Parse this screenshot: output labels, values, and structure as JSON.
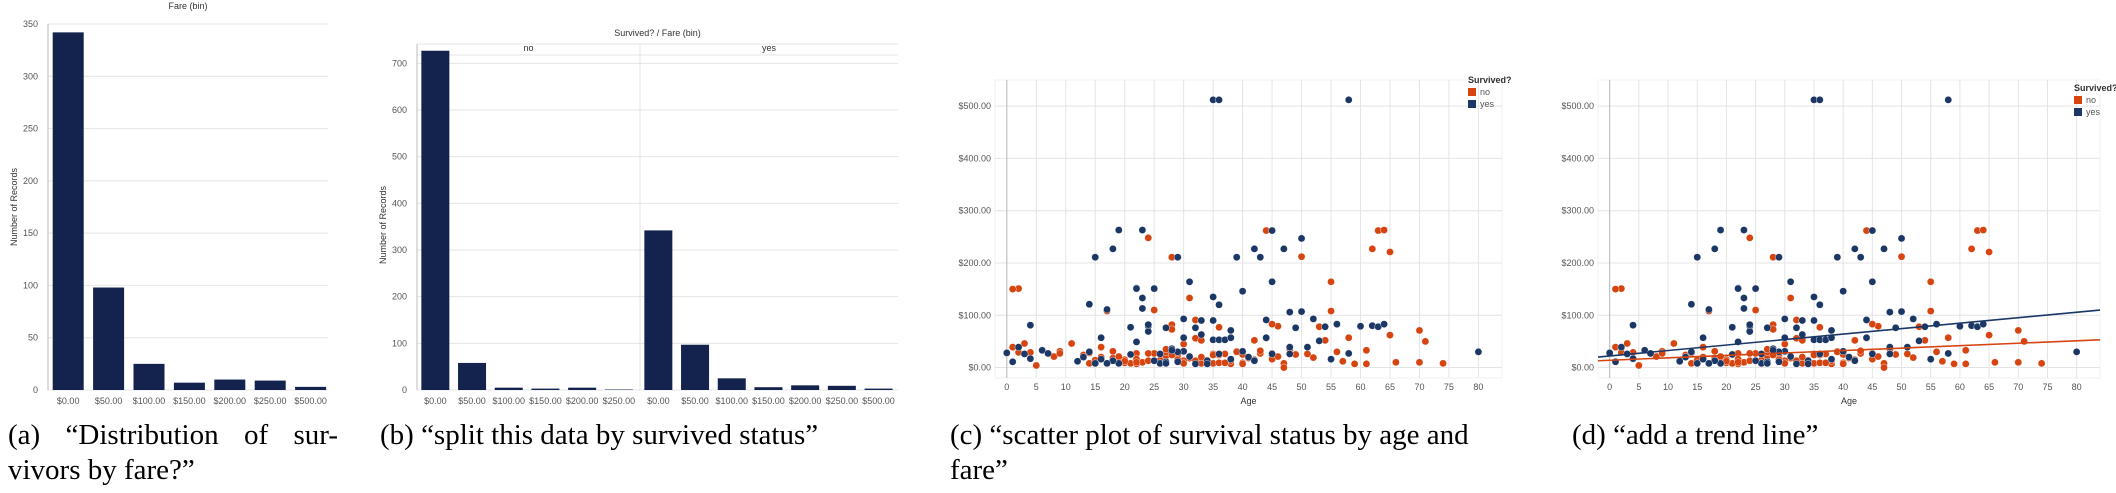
{
  "colors": {
    "bar": "#13234e",
    "no": "#d64510",
    "yes": "#1b3766",
    "grid": "#e4e4e4",
    "axis": "#bbbbbb"
  },
  "captions": {
    "a": "(a) “Distribution of sur- vivors by fare?”",
    "b": "(b) “split this data by survived status”",
    "c": "(c) “scatter plot of survival status by age and fare”",
    "d": "(d) “add a trend line”"
  },
  "chart_data": [
    {
      "id": "a",
      "type": "bar",
      "title": "Fare (bin)",
      "ylabel": "Number of Records",
      "ylim": [
        0,
        350
      ],
      "yticks": [
        0,
        50,
        100,
        150,
        200,
        250,
        300,
        350
      ],
      "categories": [
        "$0.00",
        "$50.00",
        "$100.00",
        "$150.00",
        "$200.00",
        "$250.00",
        "$500.00"
      ],
      "values": [
        342,
        98,
        25,
        7,
        10,
        9,
        3
      ],
      "grid": true
    },
    {
      "id": "b",
      "type": "bar",
      "title": "Survived? / Fare (bin)",
      "ylabel": "Number of Records",
      "ylim": [
        0,
        750
      ],
      "yticks": [
        0,
        100,
        200,
        300,
        400,
        500,
        600,
        700
      ],
      "panels": [
        {
          "name": "no",
          "categories": [
            "$0.00",
            "$50.00",
            "$100.00",
            "$150.00",
            "$200.00",
            "$250.00"
          ],
          "values": [
            727,
            58,
            5,
            3,
            5,
            1
          ]
        },
        {
          "name": "yes",
          "categories": [
            "$0.00",
            "$50.00",
            "$100.00",
            "$150.00",
            "$200.00",
            "$250.00",
            "$500.00"
          ],
          "values": [
            342,
            97,
            25,
            6,
            10,
            9,
            3
          ]
        }
      ],
      "grid": true
    },
    {
      "id": "c",
      "type": "scatter",
      "xlabel": "Age",
      "legend_title": "Survived?",
      "legend_position": "top-right",
      "xlim": [
        -2,
        84
      ],
      "ylim": [
        -20,
        550
      ],
      "xticks": [
        0,
        5,
        10,
        15,
        20,
        25,
        30,
        35,
        40,
        45,
        50,
        55,
        60,
        65,
        70,
        75,
        80
      ],
      "yticks": [
        0,
        100,
        200,
        300,
        400,
        500
      ],
      "ytick_labels": [
        "$0.00",
        "$100.00",
        "$200.00",
        "$300.00",
        "$400.00",
        "$500.00"
      ],
      "series": [
        {
          "name": "no",
          "points": [
            [
              2,
              151
            ],
            [
              1,
              150
            ],
            [
              3,
              46
            ],
            [
              22,
              7
            ],
            [
              35,
              8
            ],
            [
              54,
              52
            ],
            [
              20,
              9
            ],
            [
              39,
              31
            ],
            [
              14,
              8
            ],
            [
              2,
              29
            ],
            [
              31,
              18
            ],
            [
              35,
              26
            ],
            [
              19,
              263
            ],
            [
              40,
              28
            ],
            [
              66,
              10
            ],
            [
              28,
              82
            ],
            [
              42,
              52
            ],
            [
              21,
              8
            ],
            [
              18,
              18
            ],
            [
              40,
              9
            ],
            [
              27,
              22
            ],
            [
              38,
              7
            ],
            [
              44,
              262
            ],
            [
              61,
              33
            ],
            [
              45,
              27
            ],
            [
              28,
              211
            ],
            [
              31,
              133
            ],
            [
              58,
              57
            ],
            [
              37,
              26
            ],
            [
              65,
              62
            ],
            [
              9,
              31
            ],
            [
              28,
              73
            ],
            [
              32,
              56
            ],
            [
              27,
              30
            ],
            [
              36,
              77
            ],
            [
              62,
              227
            ],
            [
              22,
              27
            ],
            [
              17,
              108
            ],
            [
              30,
              13
            ],
            [
              46,
              79
            ],
            [
              47,
              8
            ],
            [
              24,
              248
            ],
            [
              25,
              27
            ],
            [
              29,
              21
            ],
            [
              50,
              212
            ],
            [
              40,
              25
            ],
            [
              56,
              30
            ],
            [
              18,
              31
            ],
            [
              19,
              13
            ],
            [
              24,
              27
            ],
            [
              45,
              16
            ],
            [
              33,
              52
            ],
            [
              22,
              16
            ],
            [
              36,
              9
            ],
            [
              32,
              13
            ],
            [
              20,
              15
            ],
            [
              1,
              39
            ],
            [
              52,
              19
            ],
            [
              21,
              8
            ],
            [
              26,
              14
            ],
            [
              32,
              91
            ],
            [
              36,
              24
            ],
            [
              55,
              108
            ],
            [
              8,
              21
            ],
            [
              29,
              26
            ],
            [
              4,
              29
            ],
            [
              35,
              24
            ],
            [
              55,
              164
            ],
            [
              23,
              10
            ],
            [
              42,
              15
            ],
            [
              63,
              262
            ],
            [
              39,
              30
            ],
            [
              30,
              8
            ],
            [
              48,
              35
            ],
            [
              24,
              13
            ],
            [
              47,
              0
            ],
            [
              71,
              50
            ],
            [
              64,
              263
            ],
            [
              30,
              8
            ],
            [
              70,
              10
            ],
            [
              26,
              7
            ],
            [
              28,
              24
            ],
            [
              53,
              78
            ],
            [
              16,
              20
            ],
            [
              26,
              8
            ],
            [
              20,
              12
            ],
            [
              40,
              7
            ],
            [
              43,
              27
            ],
            [
              25,
              110
            ],
            [
              70,
              71
            ],
            [
              65,
              221
            ],
            [
              59,
              7
            ],
            [
              11,
              46
            ],
            [
              33,
              8
            ],
            [
              23,
              133
            ],
            [
              61,
              7
            ],
            [
              9,
              27
            ],
            [
              5,
              4
            ],
            [
              16,
              39
            ],
            [
              38,
              13
            ],
            [
              13,
              24
            ],
            [
              45,
              83
            ],
            [
              51,
              26
            ],
            [
              29,
              15
            ],
            [
              22,
              10
            ],
            [
              74,
              8
            ],
            [
              34,
              14
            ],
            [
              14,
              28
            ],
            [
              43,
              32
            ],
            [
              49,
              25
            ],
            [
              57,
              12
            ],
            [
              19,
              21
            ],
            [
              41,
              18
            ],
            [
              37,
              9
            ],
            [
              44,
              56
            ],
            [
              15,
              14
            ],
            [
              46,
              21
            ],
            [
              27,
              35
            ],
            [
              30,
              45
            ],
            [
              33,
              20
            ]
          ]
        },
        {
          "name": "yes",
          "points": [
            [
              38,
              71
            ],
            [
              26,
              8
            ],
            [
              35,
              53
            ],
            [
              27,
              11
            ],
            [
              14,
              30
            ],
            [
              4,
              17
            ],
            [
              58,
              27
            ],
            [
              55,
              16
            ],
            [
              34,
              13
            ],
            [
              15,
              8
            ],
            [
              28,
              36
            ],
            [
              38,
              16
            ],
            [
              19,
              8
            ],
            [
              49,
              76
            ],
            [
              36,
              53
            ],
            [
              23,
              263
            ],
            [
              29,
              11
            ],
            [
              17,
              111
            ],
            [
              30,
              31
            ],
            [
              45,
              164
            ],
            [
              4,
              81
            ],
            [
              12,
              12
            ],
            [
              24,
              79
            ],
            [
              23,
              133
            ],
            [
              35,
              512
            ],
            [
              36,
              512
            ],
            [
              58,
              512
            ],
            [
              50,
              247
            ],
            [
              19,
              263
            ],
            [
              22,
              152
            ],
            [
              36,
              120
            ],
            [
              30,
              93
            ],
            [
              3,
              26
            ],
            [
              1,
              11
            ],
            [
              6,
              33
            ],
            [
              14,
              121
            ],
            [
              0,
              28
            ],
            [
              33,
              90
            ],
            [
              50,
              107
            ],
            [
              42,
              227
            ],
            [
              18,
              227
            ],
            [
              31,
              164
            ],
            [
              16,
              57
            ],
            [
              39,
              211
            ],
            [
              44,
              91
            ],
            [
              22,
              151
            ],
            [
              41,
              20
            ],
            [
              62,
              80
            ],
            [
              48,
              26
            ],
            [
              24,
              69
            ],
            [
              60,
              79
            ],
            [
              54,
              78
            ],
            [
              24,
              82
            ],
            [
              21,
              77
            ],
            [
              37,
              53
            ],
            [
              52,
              93
            ],
            [
              47,
              227
            ],
            [
              48,
              106
            ],
            [
              40,
              146
            ],
            [
              33,
              63
            ],
            [
              23,
              113
            ],
            [
              35,
              135
            ],
            [
              27,
              76
            ],
            [
              29,
              30
            ],
            [
              51,
              39
            ],
            [
              42,
              13
            ],
            [
              32,
              7
            ],
            [
              27,
              8
            ],
            [
              40,
              31
            ],
            [
              56,
              83
            ],
            [
              28,
              33
            ],
            [
              18,
              13
            ],
            [
              63,
              78
            ],
            [
              17,
              8
            ],
            [
              80,
              30
            ],
            [
              21,
              25
            ],
            [
              53,
              51
            ],
            [
              45,
              26
            ],
            [
              31,
              21
            ],
            [
              44,
              57
            ],
            [
              36,
              26
            ],
            [
              34,
              7
            ],
            [
              2,
              39
            ],
            [
              15,
              211
            ],
            [
              64,
              83
            ],
            [
              26,
              26
            ],
            [
              7,
              27
            ],
            [
              32,
              76
            ],
            [
              48,
              39
            ],
            [
              45,
              262
            ],
            [
              25,
              151
            ],
            [
              29,
              211
            ],
            [
              25,
              13
            ],
            [
              43,
              211
            ],
            [
              22,
              49
            ],
            [
              13,
              20
            ],
            [
              38,
              57
            ],
            [
              16,
              16
            ],
            [
              35,
              90
            ],
            [
              30,
              57
            ]
          ]
        }
      ]
    },
    {
      "id": "d",
      "type": "scatter",
      "xlabel": "Age",
      "legend_title": "Survived?",
      "legend_position": "top-right",
      "xlim": [
        -2,
        84
      ],
      "ylim": [
        -20,
        550
      ],
      "xticks": [
        0,
        5,
        10,
        15,
        20,
        25,
        30,
        35,
        40,
        45,
        50,
        55,
        60,
        65,
        70,
        75,
        80
      ],
      "yticks": [
        0,
        100,
        200,
        300,
        400,
        500
      ],
      "ytick_labels": [
        "$0.00",
        "$100.00",
        "$200.00",
        "$300.00",
        "$400.00",
        "$500.00"
      ],
      "trend_lines": [
        {
          "name": "no",
          "x": [
            -2,
            84
          ],
          "y": [
            13,
            53
          ]
        },
        {
          "name": "yes",
          "x": [
            -2,
            84
          ],
          "y": [
            20,
            110
          ]
        }
      ]
    }
  ]
}
